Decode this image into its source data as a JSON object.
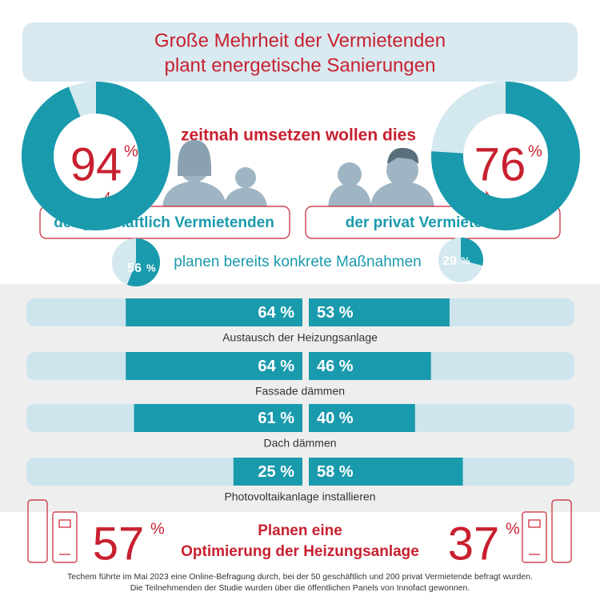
{
  "title": [
    "Große Mehrheit der Vermietenden",
    "plant energetische Sanierungen"
  ],
  "headline": "zeitnah umsetzen wollen dies",
  "concrete": "planen bereits konkrete Maßnahmen",
  "chart_data": [
    {
      "type": "donut",
      "name": "der geschäftlich Vermietenden",
      "values": [
        94
      ],
      "unit": "%",
      "color": "#1a9aad",
      "track": "#d3e8ef"
    },
    {
      "type": "donut",
      "name": "der privat Vermietenden",
      "values": [
        76
      ],
      "unit": "%",
      "color": "#1a9aad",
      "track": "#d3e8ef"
    },
    {
      "type": "donut",
      "values": [
        56
      ],
      "unit": "%",
      "color": "#1a9aad",
      "track": "#d3e8ef"
    },
    {
      "type": "donut",
      "values": [
        29
      ],
      "unit": "%",
      "color": "#1a9aad",
      "track": "#d3e8ef"
    },
    {
      "type": "butterfly",
      "xlim": [
        0,
        100
      ],
      "track": "#cfe5ee",
      "categories": [
        "Austausch der Heizungsanlage",
        "Fassade dämmen",
        "Dach dämmen",
        "Photovoltaikanlage installieren"
      ],
      "series": [
        {
          "color": "#1a9aad",
          "values": [
            64,
            64,
            61,
            25
          ],
          "value_labels": [
            "64 %",
            "64 %",
            "61 %",
            "25 %"
          ]
        },
        {
          "color": "#1a9aad",
          "values": [
            53,
            46,
            40,
            58
          ],
          "value_labels": [
            "53 %",
            "46 %",
            "40 %",
            "58 %"
          ]
        }
      ]
    }
  ],
  "optimization": {
    "text": [
      "Planen eine",
      "Optimierung der Heizungsanlage"
    ],
    "values": [
      57,
      37
    ],
    "unit": "%"
  },
  "footnote": [
    "Techem führte im Mai 2023 eine Online-Befragung durch, bei der 50 geschäftlich und 200 privat Vermietende befragt wurden.",
    "Die Teilnehmenden der Studie wurden über die öffentlichen Panels von Innofact gewonnen."
  ]
}
